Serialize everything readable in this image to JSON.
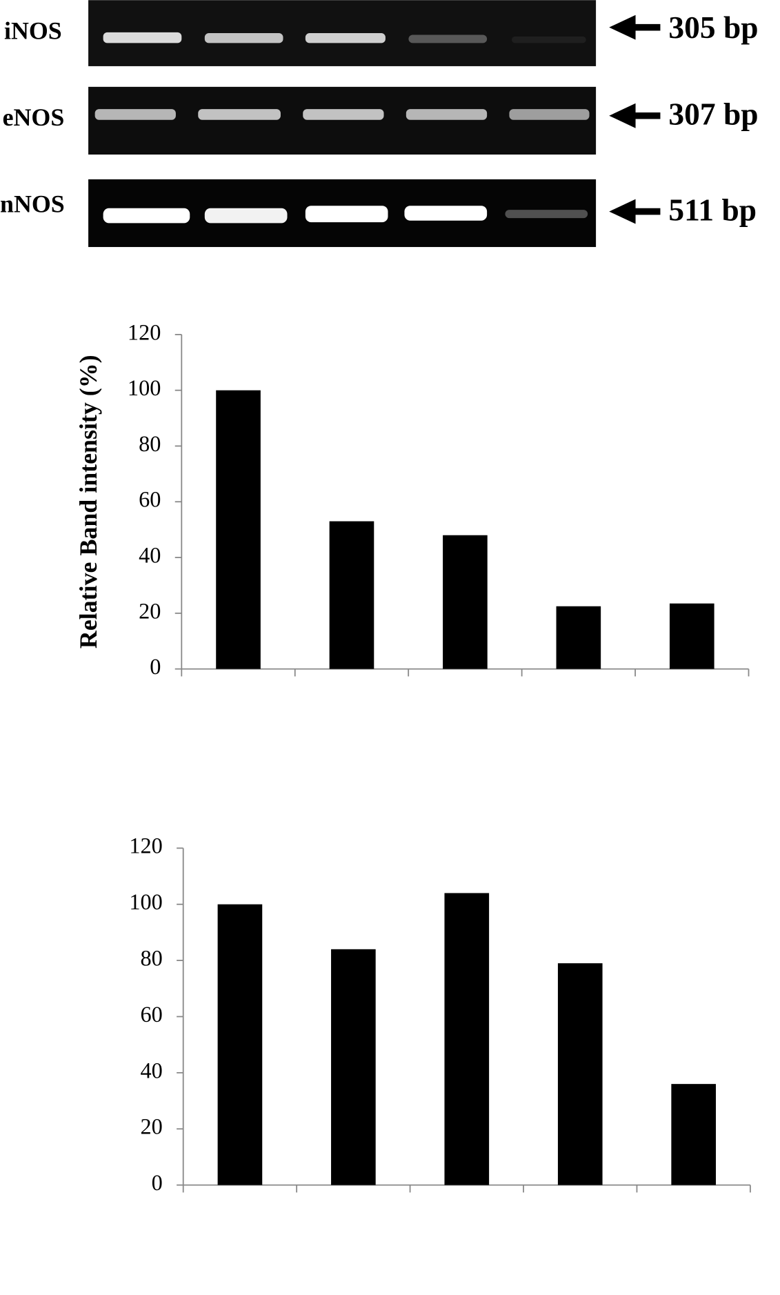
{
  "gel": {
    "rows": [
      {
        "label": "iNOS",
        "size": "305 bp"
      },
      {
        "label": "eNOS",
        "size": "307 bp"
      },
      {
        "label": "nNOS",
        "size": "511 bp"
      }
    ]
  },
  "chart_data": [
    {
      "type": "bar",
      "y_label": "Relative Band intensity (%)",
      "categories": [
        null,
        null,
        null,
        null,
        null
      ],
      "values": [
        100,
        53,
        48,
        22.5,
        23.5
      ],
      "color": "#000000",
      "ylim": [
        0,
        120
      ],
      "yticks": [
        0,
        20,
        40,
        60,
        80,
        100,
        120
      ]
    },
    {
      "type": "bar",
      "categories": [
        null,
        null,
        null,
        null,
        null
      ],
      "values": [
        100,
        84,
        104,
        79,
        36
      ],
      "color": "#000000",
      "ylim": [
        0,
        120
      ],
      "yticks": [
        0,
        20,
        40,
        60,
        80,
        100,
        120
      ]
    }
  ]
}
